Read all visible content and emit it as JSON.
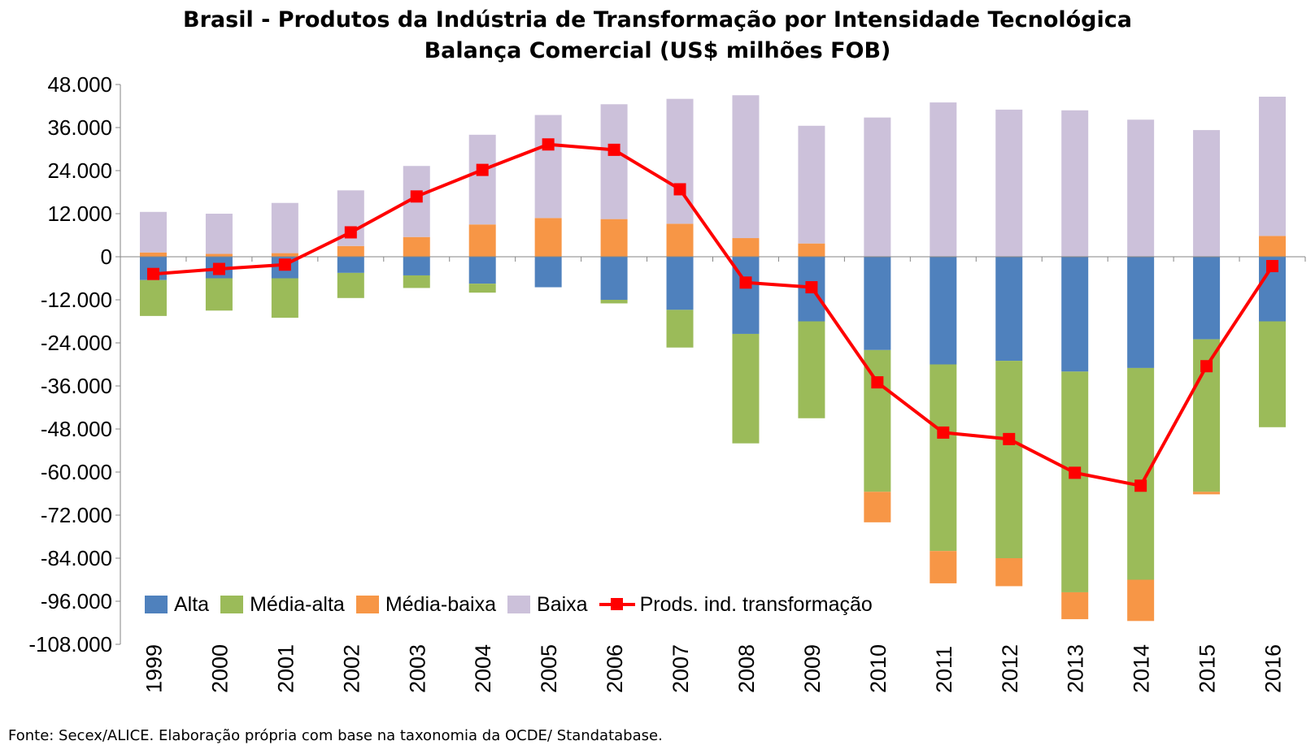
{
  "chart_data": {
    "type": "bar",
    "title": "Brasil - Produtos da Indústria de Transformação por Intensidade Tecnológica",
    "subtitle": "Balança Comercial (US$ milhões FOB)",
    "categories": [
      "1999",
      "2000",
      "2001",
      "2002",
      "2003",
      "2004",
      "2005",
      "2006",
      "2007",
      "2008",
      "2009",
      "2010",
      "2011",
      "2012",
      "2013",
      "2014",
      "2015",
      "2016"
    ],
    "ylim": [
      -108000,
      48000
    ],
    "yticks": [
      48000,
      36000,
      24000,
      12000,
      0,
      -12000,
      -24000,
      -36000,
      -48000,
      -60000,
      -72000,
      -84000,
      -96000,
      -108000
    ],
    "ytick_labels": [
      "48.000",
      "36.000",
      "24.000",
      "12.000",
      "0",
      "-12.000",
      "-24.000",
      "-36.000",
      "-48.000",
      "-60.000",
      "-72.000",
      "-84.000",
      "-96.000",
      "-108.000"
    ],
    "stacked": true,
    "grid": false,
    "legend_position": "bottom-left inside plot",
    "series": [
      {
        "name": "Alta",
        "type": "bar",
        "color": "#4f81bd",
        "values": [
          -6500,
          -6000,
          -6000,
          -4500,
          -5200,
          -7500,
          -8500,
          -12000,
          -14800,
          -21500,
          -18000,
          -26000,
          -30000,
          -29000,
          -32000,
          -31000,
          -23000,
          -18000
        ]
      },
      {
        "name": "Média-alta",
        "type": "bar",
        "color": "#9bbb59",
        "values": [
          -10000,
          -9000,
          -11000,
          -7000,
          -3500,
          -2500,
          0,
          -1000,
          -10500,
          -30500,
          -27000,
          -39500,
          -52000,
          -55000,
          -61500,
          -59000,
          -42500,
          -29500
        ]
      },
      {
        "name": "Média-baixa",
        "type": "bar",
        "color": "#f79646",
        "values": [
          1200,
          800,
          1000,
          3000,
          5500,
          9000,
          10800,
          10500,
          9200,
          5200,
          3700,
          -8500,
          -9000,
          -7800,
          -7500,
          -11500,
          -700,
          5800
        ]
      },
      {
        "name": "Baixa",
        "type": "bar",
        "color": "#ccc1da",
        "values": [
          11300,
          11200,
          14000,
          15500,
          19800,
          25000,
          28700,
          32000,
          34800,
          39800,
          32800,
          38800,
          43000,
          41000,
          40800,
          38200,
          35300,
          38800
        ]
      },
      {
        "name": "Prods. ind. transformação",
        "type": "line",
        "color": "#ff0000",
        "values": [
          -4800,
          -3400,
          -2200,
          6800,
          16800,
          24200,
          31300,
          29800,
          18800,
          -7200,
          -8500,
          -35000,
          -49000,
          -50800,
          -60200,
          -63800,
          -30500,
          -2600
        ]
      }
    ]
  },
  "source_note": "Fonte: Secex/ALICE. Elaboração própria com base na taxonomia da OCDE/ Standatabase."
}
